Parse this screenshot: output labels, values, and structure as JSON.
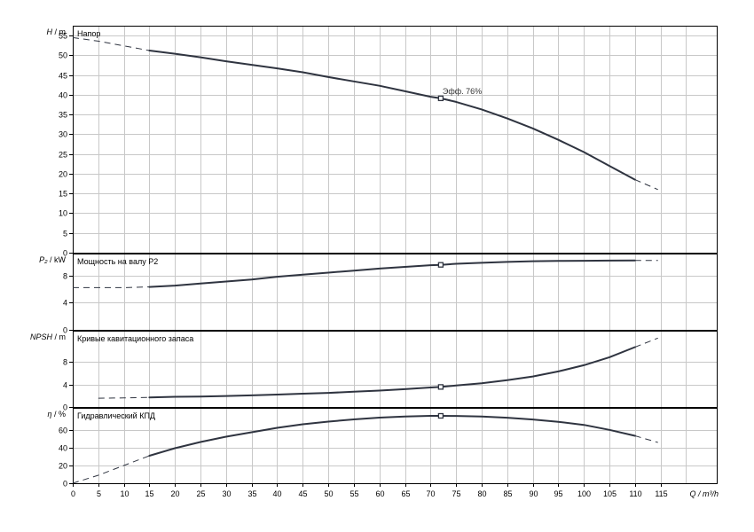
{
  "chart_data": {
    "type": "line",
    "x_axis": {
      "label": "Q / m³/h",
      "range": [
        0,
        126
      ],
      "ticks": [
        0,
        5,
        10,
        15,
        20,
        25,
        30,
        35,
        40,
        45,
        50,
        55,
        60,
        65,
        70,
        75,
        80,
        85,
        90,
        95,
        100,
        105,
        110,
        115
      ]
    },
    "operating_point_x": 72,
    "panels": [
      {
        "id": "head",
        "title": "Напор",
        "ylabel_main": "H",
        "ylabel_unit": "/ m",
        "yrange": [
          0,
          57.5
        ],
        "yticks": [
          0,
          5,
          10,
          15,
          20,
          25,
          30,
          35,
          40,
          45,
          50,
          55
        ],
        "solid": [
          [
            15,
            51.2
          ],
          [
            20,
            50.4
          ],
          [
            25,
            49.5
          ],
          [
            30,
            48.5
          ],
          [
            35,
            47.6
          ],
          [
            40,
            46.7
          ],
          [
            45,
            45.7
          ],
          [
            50,
            44.5
          ],
          [
            55,
            43.4
          ],
          [
            60,
            42.3
          ],
          [
            65,
            40.9
          ],
          [
            70,
            39.5
          ],
          [
            72,
            39.1
          ],
          [
            75,
            38.2
          ],
          [
            80,
            36.3
          ],
          [
            85,
            34.0
          ],
          [
            90,
            31.5
          ],
          [
            95,
            28.6
          ],
          [
            100,
            25.5
          ],
          [
            105,
            22.0
          ],
          [
            110,
            18.5
          ]
        ],
        "dash_left": [
          [
            0,
            54.5
          ],
          [
            5,
            53.6
          ],
          [
            10,
            52.4
          ],
          [
            15,
            51.2
          ]
        ],
        "dash_right": [
          [
            110,
            18.5
          ],
          [
            114.5,
            16.0
          ]
        ],
        "operating_point_y": 39.1,
        "annotation": "Эфф.  76%"
      },
      {
        "id": "power",
        "title": "Мощность на валу P2",
        "ylabel_main": "P₂",
        "ylabel_unit": "/ kW",
        "yrange": [
          0,
          11.2
        ],
        "yticks": [
          0,
          4,
          8
        ],
        "solid": [
          [
            15,
            6.3
          ],
          [
            20,
            6.5
          ],
          [
            25,
            6.8
          ],
          [
            30,
            7.1
          ],
          [
            35,
            7.4
          ],
          [
            40,
            7.8
          ],
          [
            45,
            8.1
          ],
          [
            50,
            8.4
          ],
          [
            55,
            8.7
          ],
          [
            60,
            9.0
          ],
          [
            65,
            9.25
          ],
          [
            70,
            9.5
          ],
          [
            72,
            9.55
          ],
          [
            75,
            9.7
          ],
          [
            80,
            9.85
          ],
          [
            85,
            9.98
          ],
          [
            90,
            10.08
          ],
          [
            95,
            10.12
          ],
          [
            100,
            10.15
          ],
          [
            105,
            10.17
          ],
          [
            110,
            10.18
          ]
        ],
        "dash_left": [
          [
            0,
            6.2
          ],
          [
            5,
            6.2
          ],
          [
            10,
            6.2
          ],
          [
            15,
            6.3
          ]
        ],
        "dash_right": [
          [
            110,
            10.18
          ],
          [
            114.5,
            10.2
          ]
        ],
        "operating_point_y": 9.55
      },
      {
        "id": "npsh",
        "title": "Кривые кавитационного запаса",
        "ylabel_main": "NPSH",
        "ylabel_unit": "/ m",
        "yrange": [
          0,
          13.5
        ],
        "yticks": [
          0,
          4,
          8
        ],
        "solid": [
          [
            15,
            1.7
          ],
          [
            20,
            1.8
          ],
          [
            25,
            1.85
          ],
          [
            30,
            1.95
          ],
          [
            35,
            2.05
          ],
          [
            40,
            2.2
          ],
          [
            45,
            2.35
          ],
          [
            50,
            2.5
          ],
          [
            55,
            2.7
          ],
          [
            60,
            2.9
          ],
          [
            65,
            3.15
          ],
          [
            70,
            3.45
          ],
          [
            72,
            3.55
          ],
          [
            75,
            3.8
          ],
          [
            80,
            4.2
          ],
          [
            85,
            4.75
          ],
          [
            90,
            5.4
          ],
          [
            95,
            6.3
          ],
          [
            100,
            7.4
          ],
          [
            105,
            8.8
          ],
          [
            110,
            10.6
          ]
        ],
        "dash_left": [
          [
            5,
            1.55
          ],
          [
            10,
            1.6
          ],
          [
            15,
            1.7
          ]
        ],
        "dash_right": [
          [
            110,
            10.6
          ],
          [
            114.5,
            12.2
          ]
        ],
        "operating_point_y": 3.55
      },
      {
        "id": "efficiency",
        "title": "Гидравлический КПД",
        "ylabel_main": "η",
        "ylabel_unit": "/ %",
        "yrange": [
          0,
          85
        ],
        "yticks": [
          0,
          20,
          40,
          60
        ],
        "solid": [
          [
            15,
            31
          ],
          [
            20,
            39.5
          ],
          [
            25,
            46.5
          ],
          [
            30,
            52.5
          ],
          [
            35,
            57.5
          ],
          [
            40,
            62.5
          ],
          [
            45,
            66.5
          ],
          [
            50,
            69.5
          ],
          [
            55,
            72
          ],
          [
            60,
            74
          ],
          [
            65,
            75.3
          ],
          [
            70,
            76
          ],
          [
            72,
            76
          ],
          [
            75,
            75.9
          ],
          [
            80,
            75.2
          ],
          [
            85,
            73.9
          ],
          [
            90,
            71.9
          ],
          [
            95,
            69.3
          ],
          [
            100,
            65.8
          ],
          [
            105,
            60.2
          ],
          [
            110,
            53.5
          ]
        ],
        "dash_left": [
          [
            0,
            0
          ],
          [
            5,
            9
          ],
          [
            10,
            20
          ],
          [
            15,
            31
          ]
        ],
        "dash_right": [
          [
            110,
            53.5
          ],
          [
            114.5,
            46
          ]
        ],
        "operating_point_y": 76
      }
    ]
  },
  "panel_label_ids": [
    "head-title",
    "power-title",
    "npsh-title",
    "efficiency-title"
  ]
}
